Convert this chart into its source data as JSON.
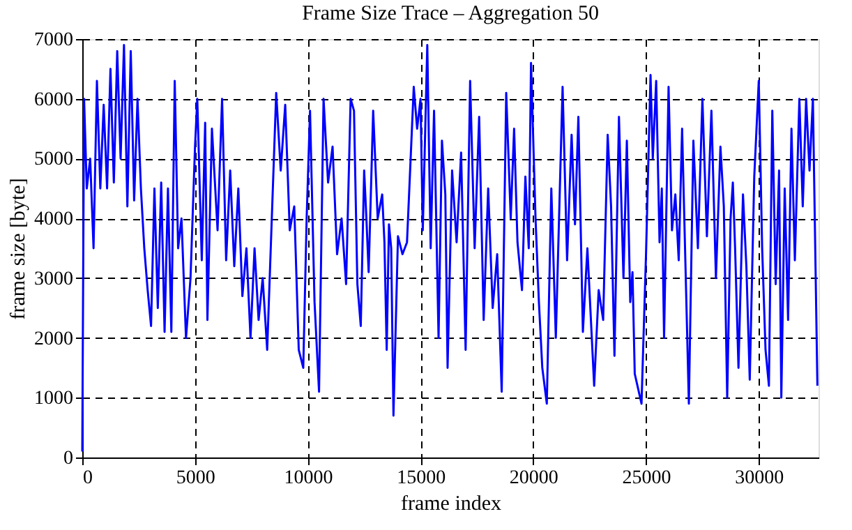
{
  "chart_data": {
    "type": "line",
    "title": "Frame Size Trace – Aggregation 50",
    "xlabel": "frame index",
    "ylabel": "frame size [byte]",
    "xlim": [
      0,
      32650
    ],
    "ylim": [
      0,
      7000
    ],
    "xticks": [
      0,
      5000,
      10000,
      15000,
      20000,
      25000,
      30000
    ],
    "yticks": [
      0,
      1000,
      2000,
      3000,
      4000,
      5000,
      6000,
      7000
    ],
    "grid": true,
    "line_style": "solid",
    "series": [
      {
        "color": "#0000ff",
        "x": [
          0,
          80,
          200,
          350,
          500,
          650,
          800,
          950,
          1100,
          1250,
          1400,
          1550,
          1700,
          1850,
          2000,
          2150,
          2300,
          2450,
          2600,
          2750,
          2900,
          3050,
          3200,
          3350,
          3500,
          3650,
          3800,
          3950,
          4100,
          4250,
          4400,
          4600,
          4800,
          5000,
          5100,
          5300,
          5450,
          5550,
          5750,
          6000,
          6200,
          6380,
          6560,
          6740,
          6920,
          7100,
          7280,
          7460,
          7640,
          7820,
          8000,
          8200,
          8600,
          8800,
          9000,
          9200,
          9400,
          9600,
          9800,
          9950,
          10100,
          10300,
          10500,
          10700,
          10900,
          11100,
          11300,
          11500,
          11700,
          11900,
          12050,
          12200,
          12350,
          12500,
          12600,
          12700,
          12900,
          13100,
          13300,
          13400,
          13500,
          13600,
          13700,
          13800,
          14000,
          14200,
          14400,
          14700,
          14850,
          15000,
          15100,
          15300,
          15450,
          15600,
          15800,
          15950,
          16100,
          16200,
          16400,
          16600,
          16800,
          17000,
          17200,
          17400,
          17600,
          17800,
          18000,
          18200,
          18400,
          18600,
          18800,
          19000,
          19150,
          19300,
          19500,
          19650,
          19800,
          19900,
          20100,
          20250,
          20400,
          20600,
          20800,
          21000,
          21300,
          21500,
          21700,
          21850,
          22000,
          22200,
          22400,
          22700,
          22900,
          23100,
          23300,
          23450,
          23600,
          23800,
          24000,
          24150,
          24300,
          24400,
          24500,
          24800,
          25000,
          25200,
          25300,
          25450,
          25600,
          25700,
          25800,
          26000,
          26150,
          26300,
          26450,
          26600,
          26750,
          26900,
          27100,
          27300,
          27500,
          27700,
          27900,
          28100,
          28300,
          28450,
          28600,
          28750,
          28850,
          28950,
          29100,
          29300,
          29450,
          29600,
          29800,
          30000,
          30150,
          30300,
          30450,
          30600,
          30750,
          30900,
          31000,
          31150,
          31300,
          31450,
          31600,
          31800,
          31950,
          32100,
          32250,
          32400,
          32600
        ],
        "values": [
          100,
          6000,
          4500,
          5000,
          3500,
          6300,
          4500,
          5900,
          4500,
          6500,
          4600,
          6800,
          5000,
          6900,
          4200,
          6800,
          4300,
          6000,
          4500,
          3500,
          2800,
          2200,
          4500,
          2500,
          4600,
          2100,
          4500,
          2100,
          6300,
          3500,
          4000,
          2000,
          3000,
          5200,
          6000,
          3300,
          5600,
          2300,
          5500,
          3800,
          6000,
          3300,
          4800,
          3200,
          4500,
          2700,
          3500,
          2000,
          3500,
          2300,
          3000,
          1800,
          6100,
          4800,
          5900,
          3800,
          4200,
          1800,
          1500,
          4000,
          5800,
          2600,
          1100,
          6000,
          4600,
          5200,
          3400,
          4000,
          2900,
          6000,
          5800,
          2900,
          2200,
          4800,
          4000,
          3100,
          5800,
          4000,
          4400,
          3600,
          1800,
          3900,
          3500,
          700,
          3700,
          3400,
          3600,
          6200,
          5500,
          6000,
          3800,
          6900,
          3500,
          5800,
          2000,
          5300,
          4400,
          1500,
          4800,
          3600,
          5100,
          1800,
          6300,
          3500,
          5700,
          2300,
          4500,
          2500,
          3400,
          1100,
          6100,
          4000,
          5500,
          3600,
          2800,
          4700,
          3500,
          6600,
          4000,
          2600,
          1500,
          900,
          4500,
          2000,
          6200,
          3300,
          5400,
          3900,
          5700,
          2100,
          3500,
          1200,
          2800,
          2300,
          5400,
          4200,
          1700,
          5700,
          3000,
          5300,
          2600,
          3100,
          1400,
          900,
          3400,
          6400,
          5000,
          6300,
          3600,
          4500,
          2000,
          6200,
          3800,
          4400,
          3300,
          5500,
          3200,
          900,
          5300,
          3500,
          6000,
          3700,
          5800,
          3000,
          5200,
          4200,
          1000,
          4000,
          4600,
          3500,
          1500,
          4400,
          3200,
          1300,
          4700,
          6300,
          3500,
          1800,
          1200,
          5800,
          2900,
          4800,
          1000,
          4500,
          2300,
          5500,
          3300,
          6000,
          4200,
          6000,
          4800,
          6000,
          1200
        ]
      }
    ]
  }
}
